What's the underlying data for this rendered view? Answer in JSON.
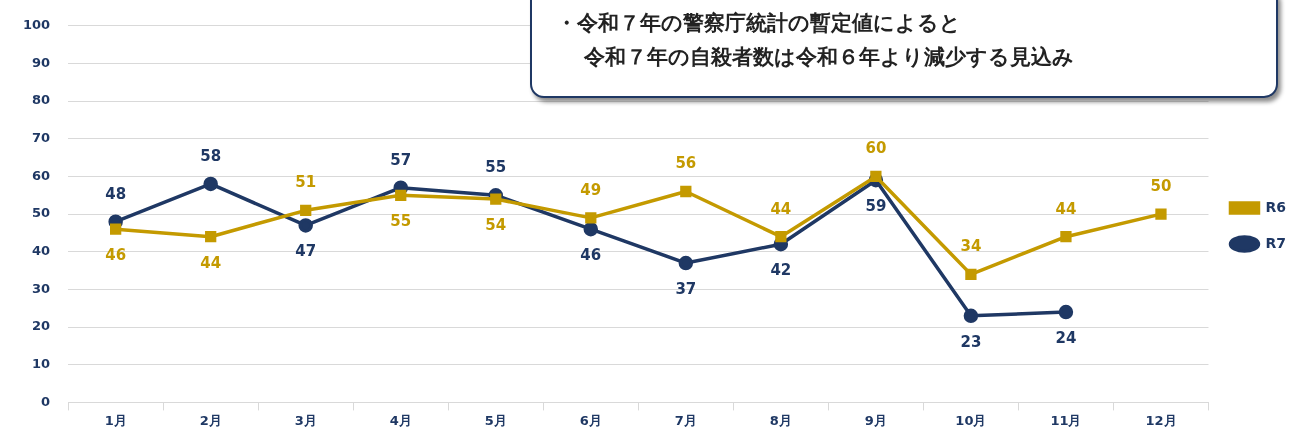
{
  "chart_data": {
    "type": "line",
    "categories": [
      "1月",
      "2月",
      "3月",
      "4月",
      "5月",
      "6月",
      "7月",
      "8月",
      "9月",
      "10月",
      "11月",
      "12月"
    ],
    "series": [
      {
        "name": "R6",
        "color": "#c49a00",
        "marker": "square",
        "values": [
          46,
          44,
          51,
          55,
          54,
          49,
          56,
          44,
          60,
          34,
          44,
          50
        ]
      },
      {
        "name": "R7",
        "color": "#1f3864",
        "marker": "circle",
        "values": [
          48,
          58,
          47,
          57,
          55,
          46,
          37,
          42,
          59,
          23,
          24,
          null
        ]
      }
    ],
    "ylim": [
      0,
      100
    ],
    "yticks": [
      0,
      10,
      20,
      30,
      40,
      50,
      60,
      70,
      80,
      90,
      100
    ],
    "grid": "y",
    "legend": "right",
    "data_labels": true,
    "annotations": [
      "・令和７年の警察庁統計の暫定値によると",
      "令和７年の自殺者数は令和６年より減少する見込み"
    ]
  }
}
